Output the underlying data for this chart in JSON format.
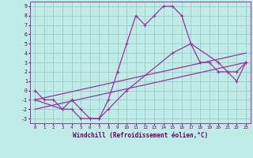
{
  "xlabel": "Windchill (Refroidissement éolien,°C)",
  "xlim": [
    -0.5,
    23.5
  ],
  "ylim": [
    -3.5,
    9.5
  ],
  "yticks": [
    -3,
    -2,
    -1,
    0,
    1,
    2,
    3,
    4,
    5,
    6,
    7,
    8,
    9
  ],
  "xticks": [
    0,
    1,
    2,
    3,
    4,
    5,
    6,
    7,
    8,
    9,
    10,
    11,
    12,
    13,
    14,
    15,
    16,
    17,
    18,
    19,
    20,
    21,
    22,
    23
  ],
  "background_color": "#c0ece8",
  "grid_color": "#99cccc",
  "line_color": "#993399",
  "line1_x": [
    0,
    1,
    2,
    3,
    4,
    5,
    6,
    7,
    8,
    9,
    10,
    11,
    12,
    13,
    14,
    15,
    16,
    17,
    18,
    19,
    20,
    21,
    22,
    23
  ],
  "line1_y": [
    0,
    -1,
    -1,
    -2,
    -2,
    -3,
    -3,
    -3,
    -1,
    2,
    5,
    8,
    7,
    8,
    9,
    9,
    8,
    5,
    3,
    3,
    2,
    2,
    1,
    3
  ],
  "line2_x": [
    0,
    3,
    4,
    5,
    6,
    7,
    8,
    10,
    15,
    17,
    20,
    21,
    22,
    23
  ],
  "line2_y": [
    -1,
    -2,
    -1,
    -2,
    -3,
    -3,
    -2,
    0,
    4,
    5,
    3,
    2,
    2,
    3
  ],
  "line3_x": [
    0,
    23
  ],
  "line3_y": [
    -2,
    3
  ],
  "line4_x": [
    0,
    23
  ],
  "line4_y": [
    -1,
    4
  ],
  "tick_color": "#660066",
  "xlabel_color": "#660066",
  "xlabel_fontsize": 5.5,
  "xtick_fontsize": 4.2,
  "ytick_fontsize": 4.8,
  "linewidth": 0.9,
  "marker_size": 3.0
}
